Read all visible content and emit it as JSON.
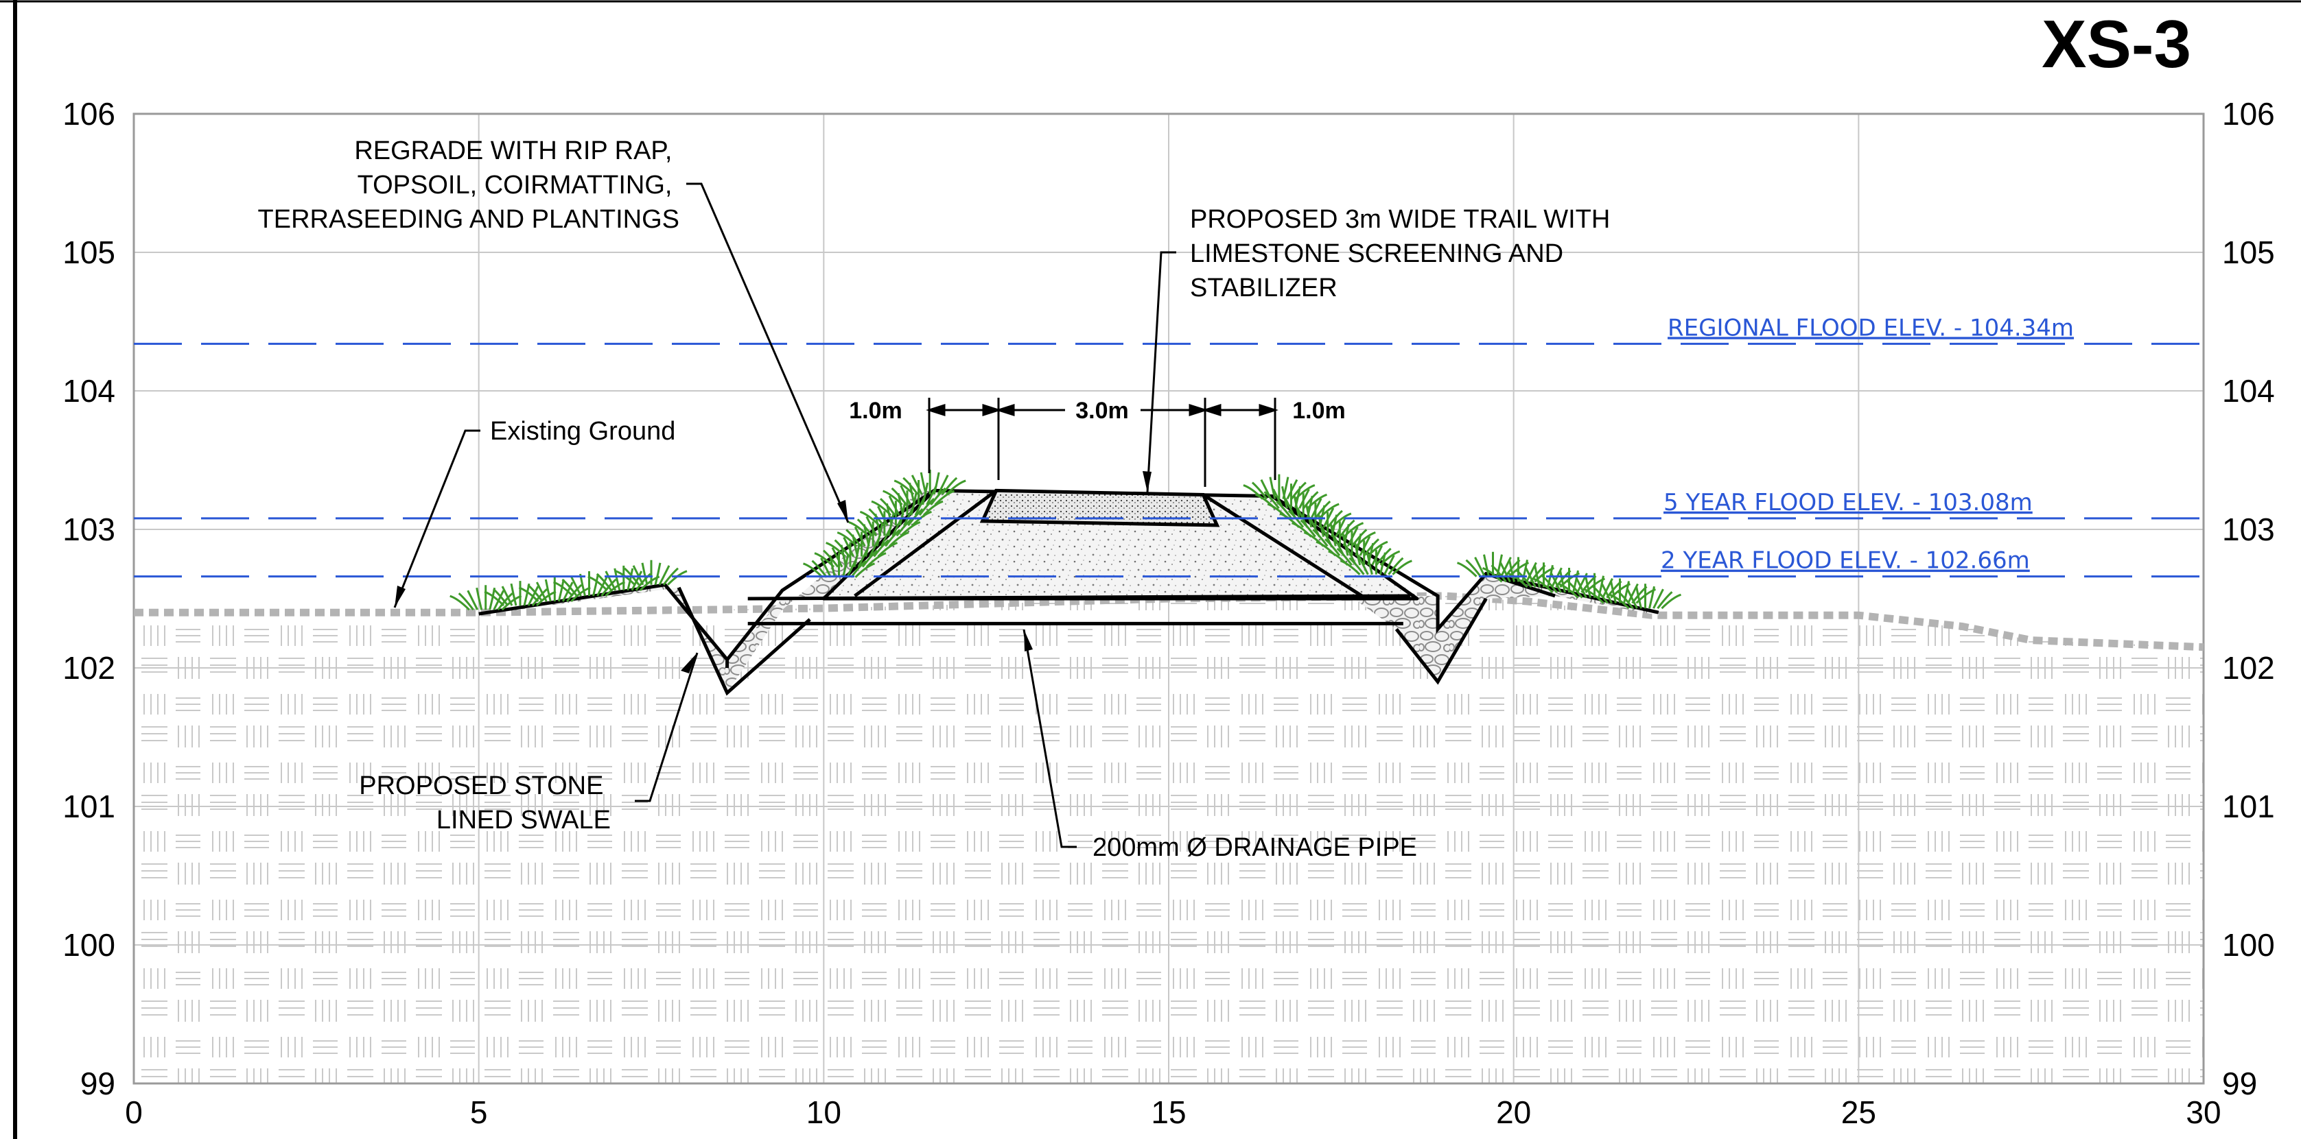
{
  "drawing": {
    "title": "XS-3",
    "x_ticks": [
      0,
      5,
      10,
      15,
      20,
      25,
      30
    ],
    "y_ticks": [
      99,
      100,
      101,
      102,
      103,
      104,
      105,
      106
    ],
    "xlim": [
      0,
      30
    ],
    "ylim": [
      99,
      106
    ]
  },
  "flood_lines": [
    {
      "label": "REGIONAL FLOOD ELEV. - 104.34m",
      "elev": 104.34
    },
    {
      "label": "5 YEAR FLOOD ELEV. - 103.08m",
      "elev": 103.08
    },
    {
      "label": "2 YEAR FLOOD ELEV. - 102.66m",
      "elev": 102.66
    }
  ],
  "annotations": {
    "regrade": [
      "REGRADE WITH RIP RAP,",
      "TOPSOIL, COIRMATTING,",
      "TERRASEEDING AND PLANTINGS"
    ],
    "trail": [
      "PROPOSED 3m WIDE TRAIL WITH",
      "LIMESTONE SCREENING AND",
      "STABILIZER"
    ],
    "existing_ground": "Existing Ground",
    "swale": [
      "PROPOSED STONE",
      "LINED SWALE"
    ],
    "pipe": "200mm Ø DRAINAGE PIPE"
  },
  "dimensions": {
    "left": "1.0m",
    "center": "3.0m",
    "right": "1.0m"
  },
  "colors": {
    "flood": "#2a57d6",
    "ground": "#b3b3b3",
    "grid": "#c8c8c8",
    "vegetation": "#3f9a2a"
  }
}
